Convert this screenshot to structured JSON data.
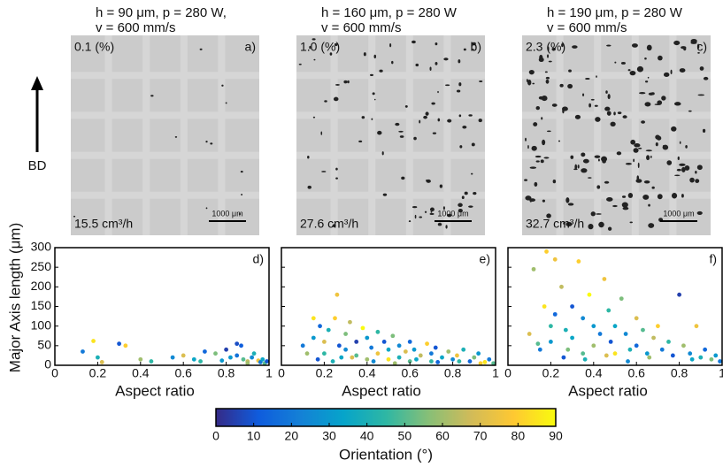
{
  "direction_label": "BD",
  "panels": [
    {
      "title": [
        "h = 90 μm, p = 280 W,",
        "v = 600 mm/s"
      ],
      "porosity": "0.1 (%)",
      "label": "a)",
      "rate": "15.5 cm³/h",
      "scalebar": "1000 μm"
    },
    {
      "title": [
        "h = 160 μm, p = 280 W",
        "v = 600 mm/s"
      ],
      "porosity": "1.0 (%)",
      "label": "b)",
      "rate": "27.6 cm³/h",
      "scalebar": "1000 μm"
    },
    {
      "title": [
        "h = 190 μm, p = 280 W",
        "v = 600 mm/s"
      ],
      "porosity": "2.3 (%)",
      "label": "c)",
      "rate": "32.7 cm³/h",
      "scalebar": "1000 μm"
    }
  ],
  "chart_data": [
    {
      "type": "scatter",
      "label": "d)",
      "x_label": "Aspect ratio",
      "y_label": "Major Axis length (μm)",
      "xlim": [
        0,
        1
      ],
      "xticks": [
        0,
        0.2,
        0.4,
        0.6,
        0.8,
        1
      ],
      "ylim": [
        0,
        300
      ],
      "yticks": [
        0,
        50,
        100,
        150,
        200,
        250,
        300
      ],
      "x": [
        0.13,
        0.18,
        0.2,
        0.3,
        0.33,
        0.4,
        0.45,
        0.55,
        0.6,
        0.65,
        0.7,
        0.75,
        0.8,
        0.82,
        0.85,
        0.87,
        0.88,
        0.9,
        0.92,
        0.93,
        0.95,
        0.96,
        0.97,
        0.98,
        0.99,
        0.85,
        0.9,
        0.78,
        0.22,
        0.68
      ],
      "y": [
        35,
        62,
        20,
        55,
        50,
        15,
        10,
        20,
        25,
        15,
        35,
        30,
        40,
        20,
        55,
        50,
        15,
        10,
        20,
        30,
        12,
        8,
        15,
        5,
        10,
        25,
        5,
        12,
        8,
        10
      ],
      "orientation": [
        20,
        85,
        40,
        10,
        80,
        60,
        45,
        25,
        70,
        35,
        15,
        55,
        5,
        30,
        8,
        12,
        50,
        65,
        25,
        40,
        75,
        20,
        35,
        50,
        10,
        18,
        60,
        30,
        70,
        45
      ]
    },
    {
      "type": "scatter",
      "label": "e)",
      "x_label": "Aspect ratio",
      "xlim": [
        0,
        1
      ],
      "xticks": [
        0,
        0.2,
        0.4,
        0.6,
        0.8,
        1
      ],
      "ylim": [
        0,
        300
      ],
      "yticks": [
        0,
        50,
        100,
        150,
        200,
        250,
        300
      ],
      "x": [
        0.1,
        0.12,
        0.15,
        0.15,
        0.18,
        0.2,
        0.2,
        0.22,
        0.25,
        0.26,
        0.27,
        0.28,
        0.3,
        0.3,
        0.32,
        0.35,
        0.35,
        0.38,
        0.4,
        0.4,
        0.42,
        0.45,
        0.45,
        0.48,
        0.5,
        0.5,
        0.52,
        0.55,
        0.55,
        0.58,
        0.6,
        0.6,
        0.62,
        0.65,
        0.68,
        0.7,
        0.7,
        0.72,
        0.75,
        0.78,
        0.8,
        0.82,
        0.85,
        0.88,
        0.9,
        0.92,
        0.95,
        0.97,
        0.99,
        0.17,
        0.24,
        0.33,
        0.43,
        0.53,
        0.63,
        0.73,
        0.83,
        0.93
      ],
      "y": [
        50,
        30,
        120,
        70,
        100,
        60,
        30,
        90,
        120,
        180,
        50,
        20,
        80,
        40,
        110,
        60,
        25,
        95,
        70,
        15,
        45,
        85,
        30,
        60,
        40,
        15,
        75,
        50,
        20,
        35,
        60,
        10,
        40,
        25,
        55,
        30,
        10,
        45,
        20,
        35,
        15,
        25,
        40,
        10,
        20,
        30,
        8,
        15,
        5,
        15,
        10,
        20,
        10,
        5,
        15,
        8,
        10,
        5
      ],
      "orientation": [
        20,
        60,
        85,
        30,
        15,
        70,
        45,
        40,
        80,
        75,
        10,
        35,
        55,
        25,
        65,
        5,
        50,
        90,
        30,
        60,
        20,
        45,
        75,
        10,
        35,
        85,
        55,
        25,
        40,
        70,
        15,
        50,
        30,
        65,
        80,
        20,
        45,
        10,
        35,
        60,
        25,
        75,
        40,
        15,
        55,
        30,
        85,
        20,
        50,
        10,
        40,
        70,
        25,
        60,
        35,
        15,
        45,
        80
      ]
    },
    {
      "type": "scatter",
      "label": "f)",
      "x_label": "Aspect ratio",
      "xlim": [
        0,
        1
      ],
      "xticks": [
        0,
        0.2,
        0.4,
        0.6,
        0.8,
        1
      ],
      "ylim": [
        0,
        300
      ],
      "yticks": [
        0,
        50,
        100,
        150,
        200,
        250,
        300
      ],
      "x": [
        0.1,
        0.12,
        0.15,
        0.17,
        0.18,
        0.2,
        0.2,
        0.22,
        0.22,
        0.25,
        0.27,
        0.28,
        0.3,
        0.3,
        0.33,
        0.35,
        0.35,
        0.38,
        0.4,
        0.4,
        0.43,
        0.45,
        0.47,
        0.48,
        0.5,
        0.5,
        0.53,
        0.55,
        0.57,
        0.6,
        0.6,
        0.63,
        0.65,
        0.68,
        0.7,
        0.72,
        0.75,
        0.77,
        0.8,
        0.82,
        0.85,
        0.88,
        0.9,
        0.92,
        0.95,
        0.97,
        0.99,
        0.14,
        0.26,
        0.36,
        0.46,
        0.56,
        0.66,
        0.86
      ],
      "y": [
        80,
        245,
        40,
        150,
        290,
        100,
        60,
        270,
        130,
        200,
        90,
        40,
        150,
        70,
        265,
        120,
        30,
        180,
        100,
        50,
        80,
        220,
        140,
        60,
        100,
        30,
        170,
        80,
        40,
        120,
        50,
        90,
        30,
        70,
        100,
        40,
        60,
        25,
        180,
        50,
        30,
        100,
        20,
        40,
        15,
        25,
        10,
        55,
        20,
        15,
        25,
        10,
        20,
        15
      ],
      "orientation": [
        70,
        60,
        20,
        85,
        80,
        45,
        30,
        75,
        15,
        65,
        40,
        55,
        10,
        35,
        80,
        25,
        50,
        90,
        30,
        60,
        20,
        75,
        45,
        10,
        35,
        85,
        55,
        25,
        40,
        70,
        15,
        50,
        30,
        65,
        80,
        20,
        45,
        10,
        5,
        60,
        25,
        75,
        40,
        15,
        55,
        30,
        20,
        50,
        10,
        40,
        70,
        25,
        60,
        35
      ]
    }
  ],
  "colorbar": {
    "label": "Orientation (°)",
    "clim": [
      0,
      90
    ],
    "ticks": [
      0,
      10,
      20,
      30,
      40,
      50,
      60,
      70,
      80,
      90
    ],
    "colors": [
      "#352a87",
      "#0f5cdd",
      "#1481d6",
      "#06a4ca",
      "#2eb7a4",
      "#87bf77",
      "#d1bb59",
      "#fec832",
      "#f9fb0e"
    ]
  }
}
